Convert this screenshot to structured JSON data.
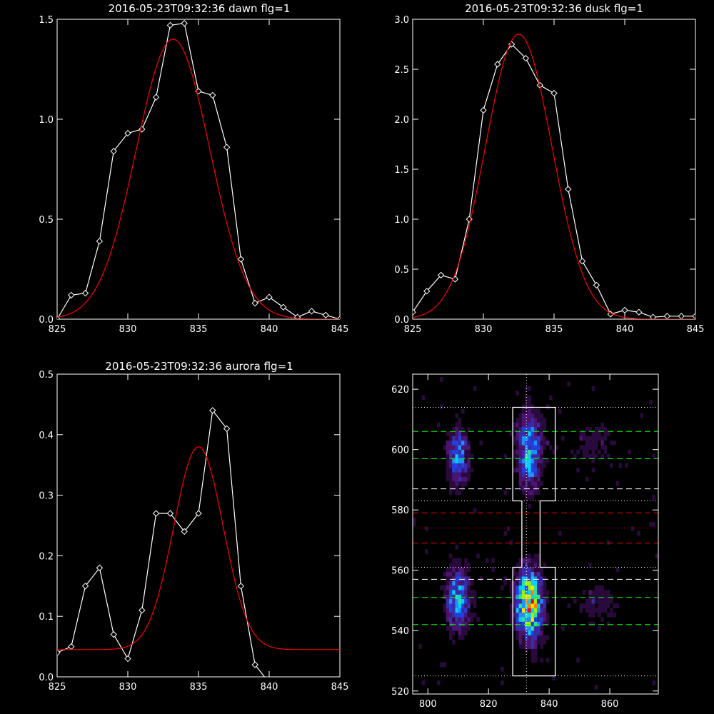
{
  "figure": {
    "background": "#000000",
    "axis_color": "#ffffff",
    "data_color": "#ffffff",
    "fit_color": "#ff0000"
  },
  "chart_data": [
    {
      "id": "dawn",
      "type": "line",
      "title": "2016-05-23T09:32:36 dawn flg=1",
      "xlim": [
        825,
        845
      ],
      "ylim": [
        0,
        1.5
      ],
      "xticks": [
        825,
        830,
        835,
        840,
        845
      ],
      "yticks": [
        0.0,
        0.5,
        1.0,
        1.5
      ],
      "ytick_labels": [
        "0.0",
        "0.5",
        "1.0",
        "1.5"
      ],
      "series": [
        {
          "style": "line-diamond",
          "color": "#ffffff",
          "x": [
            825,
            826,
            827,
            828,
            829,
            830,
            831,
            832,
            833,
            834,
            835,
            836,
            837,
            838,
            839,
            840,
            841,
            842,
            843,
            844,
            845
          ],
          "y": [
            0.0,
            0.12,
            0.13,
            0.39,
            0.84,
            0.93,
            0.95,
            1.11,
            1.47,
            1.48,
            1.14,
            1.12,
            0.86,
            0.3,
            0.08,
            0.11,
            0.06,
            0.01,
            0.04,
            0.02,
            0.0
          ]
        },
        {
          "style": "gaussian-fit",
          "color": "#ff0000",
          "amplitude": 1.4,
          "center": 833.2,
          "sigma": 2.6,
          "offset": 0.0
        }
      ]
    },
    {
      "id": "dusk",
      "type": "line",
      "title": "2016-05-23T09:32:36 dusk flg=1",
      "xlim": [
        825,
        845
      ],
      "ylim": [
        0,
        3.0
      ],
      "xticks": [
        825,
        830,
        835,
        840,
        845
      ],
      "yticks": [
        0.0,
        0.5,
        1.0,
        1.5,
        2.0,
        2.5,
        3.0
      ],
      "ytick_labels": [
        "0.0",
        "0.5",
        "1.0",
        "1.5",
        "2.0",
        "2.5",
        "3.0"
      ],
      "series": [
        {
          "style": "line-diamond",
          "color": "#ffffff",
          "x": [
            825,
            826,
            827,
            828,
            829,
            830,
            831,
            832,
            833,
            834,
            835,
            836,
            837,
            838,
            839,
            840,
            841,
            842,
            843,
            844,
            845
          ],
          "y": [
            0.07,
            0.28,
            0.44,
            0.4,
            1.0,
            2.09,
            2.55,
            2.75,
            2.61,
            2.34,
            2.26,
            1.3,
            0.58,
            0.34,
            0.05,
            0.09,
            0.07,
            0.02,
            0.03,
            0.03,
            0.03
          ]
        },
        {
          "style": "gaussian-fit",
          "color": "#ff0000",
          "amplitude": 2.85,
          "center": 832.5,
          "sigma": 2.35,
          "offset": 0.0
        }
      ]
    },
    {
      "id": "aurora",
      "type": "line",
      "title": "2016-05-23T09:32:36 aurora flg=1",
      "xlim": [
        825,
        845
      ],
      "ylim": [
        0,
        0.5
      ],
      "xticks": [
        825,
        830,
        835,
        840,
        845
      ],
      "yticks": [
        0.0,
        0.1,
        0.2,
        0.3,
        0.4,
        0.5
      ],
      "ytick_labels": [
        "0.0",
        "0.1",
        "0.2",
        "0.3",
        "0.4",
        "0.5"
      ],
      "series": [
        {
          "style": "line-diamond",
          "color": "#ffffff",
          "x": [
            825,
            826,
            827,
            828,
            829,
            830,
            831,
            832,
            833,
            834,
            835,
            836,
            837,
            838,
            839,
            840,
            841,
            842,
            843,
            844,
            845
          ],
          "y": [
            0.04,
            0.05,
            0.15,
            0.18,
            0.07,
            0.03,
            0.11,
            0.27,
            0.27,
            0.24,
            0.27,
            0.44,
            0.41,
            0.15,
            0.02,
            -0.01,
            -0.01,
            -0.01,
            -0.01,
            -0.01,
            -0.01
          ]
        },
        {
          "style": "gaussian-fit",
          "color": "#ff0000",
          "amplitude": 0.335,
          "center": 835.0,
          "sigma": 1.75,
          "offset": 0.045
        }
      ]
    },
    {
      "id": "image",
      "type": "heatmap",
      "xlim": [
        795,
        876
      ],
      "ylim": [
        519,
        625
      ],
      "xticks": [
        800,
        820,
        840,
        860
      ],
      "yticks": [
        520,
        540,
        560,
        580,
        600,
        620
      ],
      "colormap": [
        "#000000",
        "#2a0a3d",
        "#4b1470",
        "#3a2ca8",
        "#2040e0",
        "#1e90ff",
        "#00d0ff",
        "#30e0a0",
        "#a0f000",
        "#ffe000",
        "#ff8000",
        "#ff0000"
      ],
      "blobs": [
        {
          "x": 809.5,
          "y": 597,
          "sx": 2.5,
          "sy": 7,
          "amp": 5
        },
        {
          "x": 833,
          "y": 599,
          "sx": 3,
          "sy": 9,
          "amp": 6
        },
        {
          "x": 809.5,
          "y": 550,
          "sx": 2.8,
          "sy": 7,
          "amp": 6
        },
        {
          "x": 833,
          "y": 548,
          "sx": 3,
          "sy": 8,
          "amp": 10
        },
        {
          "x": 855,
          "y": 601,
          "sx": 6,
          "sy": 6,
          "amp": 1.5
        },
        {
          "x": 855,
          "y": 548,
          "sx": 6,
          "sy": 6,
          "amp": 1.5
        }
      ],
      "vline_x": 832.5,
      "outline": [
        [
          828,
          614
        ],
        [
          842,
          614
        ],
        [
          842,
          583
        ],
        [
          837,
          583
        ],
        [
          837,
          561
        ],
        [
          842,
          561
        ],
        [
          842,
          525
        ],
        [
          828,
          525
        ],
        [
          828,
          561
        ],
        [
          831,
          561
        ],
        [
          831,
          583
        ],
        [
          828,
          583
        ]
      ],
      "hlines": [
        {
          "y": 614,
          "color": "#ffffff",
          "style": "dotted"
        },
        {
          "y": 606,
          "color": "#00ff00",
          "style": "dashed"
        },
        {
          "y": 597,
          "color": "#00ff00",
          "style": "dashed"
        },
        {
          "y": 587,
          "color": "#ffffff",
          "style": "dashed"
        },
        {
          "y": 583,
          "color": "#ffffff",
          "style": "dotted"
        },
        {
          "y": 579,
          "color": "#ff0000",
          "style": "dashed"
        },
        {
          "y": 574,
          "color": "#ff0000",
          "style": "dotted"
        },
        {
          "y": 569,
          "color": "#ff0000",
          "style": "dashed"
        },
        {
          "y": 561,
          "color": "#ffffff",
          "style": "dotted"
        },
        {
          "y": 557,
          "color": "#ffffff",
          "style": "dashed"
        },
        {
          "y": 551,
          "color": "#00ff00",
          "style": "dashed"
        },
        {
          "y": 542,
          "color": "#00ff00",
          "style": "dashed"
        },
        {
          "y": 525,
          "color": "#ffffff",
          "style": "dotted"
        }
      ]
    }
  ]
}
